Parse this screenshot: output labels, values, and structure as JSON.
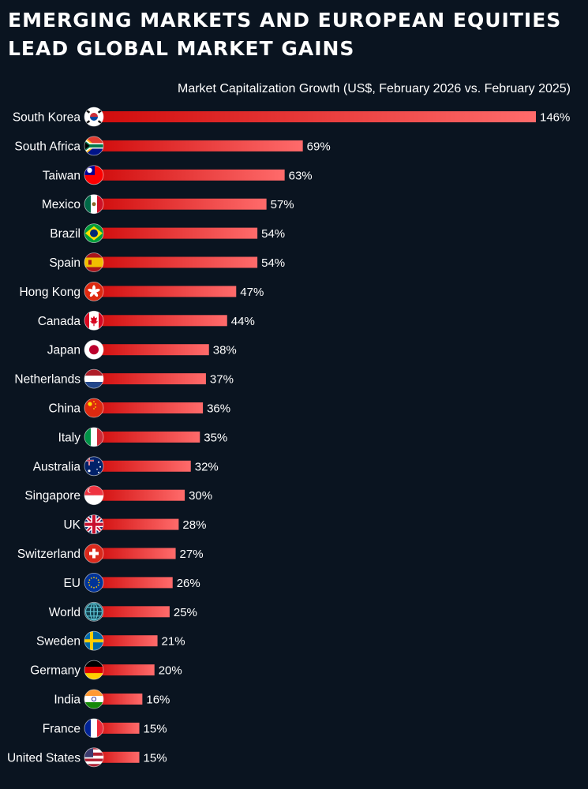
{
  "header": {
    "title_line1": "Emerging Markets and European Equities",
    "title_line2": "Lead Global Market Gains"
  },
  "chart_data": {
    "type": "bar",
    "orientation": "horizontal",
    "title": "Emerging Markets and European Equities Lead Global Market Gains",
    "subtitle": "Market Capitalization Growth (US$, February 2026 vs. February 2025)",
    "value_suffix": "%",
    "xlim": [
      0,
      146
    ],
    "grid": false,
    "colors": {
      "bar_dark": "#d00b0b",
      "bar_light": "#ff6b6b",
      "background": "#0a1420"
    },
    "categories": [
      "South Korea",
      "South Africa",
      "Taiwan",
      "Mexico",
      "Brazil",
      "Spain",
      "Hong Kong",
      "Canada",
      "Japan",
      "Netherlands",
      "China",
      "Italy",
      "Australia",
      "Singapore",
      "UK",
      "Switzerland",
      "EU",
      "World",
      "Sweden",
      "Germany",
      "India",
      "France",
      "United States"
    ],
    "flags": [
      "south-korea-flag-icon",
      "south-africa-flag-icon",
      "taiwan-flag-icon",
      "mexico-flag-icon",
      "brazil-flag-icon",
      "spain-flag-icon",
      "hong-kong-flag-icon",
      "canada-flag-icon",
      "japan-flag-icon",
      "netherlands-flag-icon",
      "china-flag-icon",
      "italy-flag-icon",
      "australia-flag-icon",
      "singapore-flag-icon",
      "uk-flag-icon",
      "switzerland-flag-icon",
      "eu-flag-icon",
      "globe-icon",
      "sweden-flag-icon",
      "germany-flag-icon",
      "india-flag-icon",
      "france-flag-icon",
      "united-states-flag-icon"
    ],
    "values": [
      146,
      69,
      63,
      57,
      54,
      54,
      47,
      44,
      38,
      37,
      36,
      35,
      32,
      30,
      28,
      27,
      26,
      25,
      21,
      20,
      16,
      15,
      15
    ]
  }
}
